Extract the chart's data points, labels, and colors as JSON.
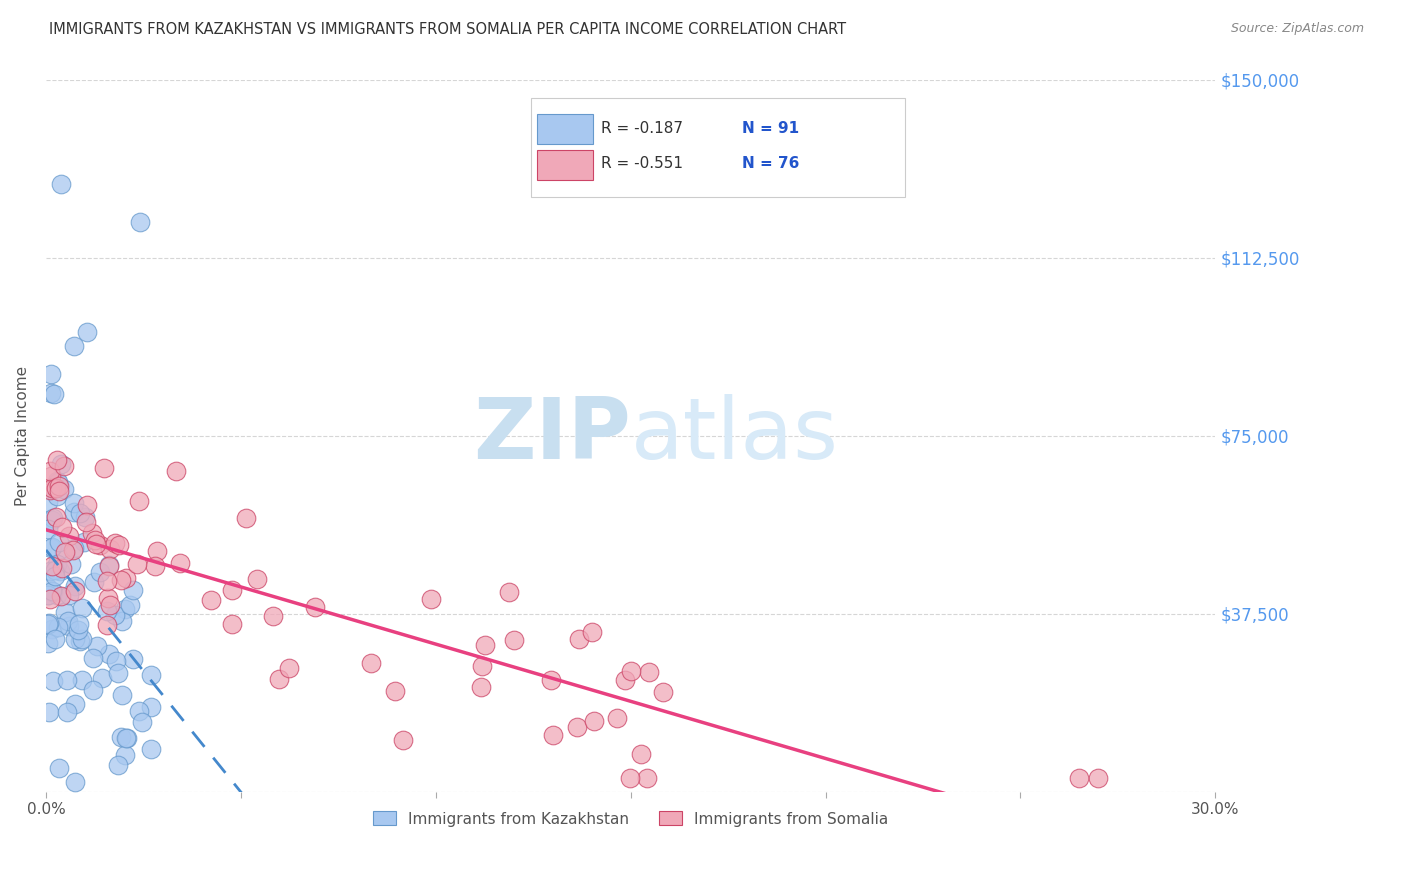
{
  "title": "IMMIGRANTS FROM KAZAKHSTAN VS IMMIGRANTS FROM SOMALIA PER CAPITA INCOME CORRELATION CHART",
  "source": "Source: ZipAtlas.com",
  "ylabel": "Per Capita Income",
  "xlim": [
    0.0,
    0.3
  ],
  "ylim": [
    0,
    150000
  ],
  "yticks": [
    0,
    37500,
    75000,
    112500,
    150000
  ],
  "ytick_labels": [
    "",
    "$37,500",
    "$75,000",
    "$112,500",
    "$150,000"
  ],
  "legend_kaz_r": "-0.187",
  "legend_kaz_n": "91",
  "legend_som_r": "-0.551",
  "legend_som_n": "76",
  "legend_label_kaz": "Immigrants from Kazakhstan",
  "legend_label_som": "Immigrants from Somalia",
  "color_kaz": "#a8c8f0",
  "color_som": "#f0a8b8",
  "color_kaz_line": "#4488cc",
  "color_som_line": "#e84080",
  "color_kaz_edge": "#6699cc",
  "color_som_edge": "#cc4466",
  "watermark_color": "#c8dff0",
  "background_color": "#ffffff",
  "grid_color": "#cccccc",
  "title_color": "#333333",
  "axis_label_color": "#555555",
  "right_tick_color": "#5599ee",
  "n_kaz": 91,
  "n_som": 76
}
